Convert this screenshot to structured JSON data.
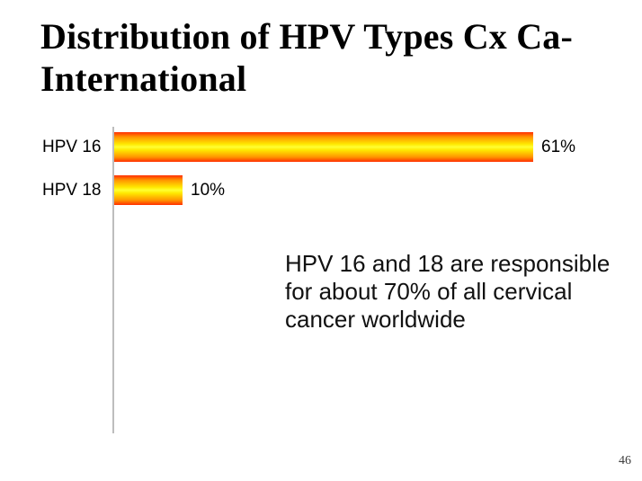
{
  "slide": {
    "title_line1": "Distribution of HPV Types Cx Ca-",
    "title_line2": "International",
    "page_number": "46"
  },
  "chart_data": {
    "type": "bar",
    "orientation": "horizontal",
    "title": "Distribution of HPV Types Cx Ca-International",
    "categories": [
      "HPV 16",
      "HPV 18"
    ],
    "values": [
      61,
      10
    ],
    "value_labels": [
      "61%",
      "10%"
    ],
    "unit": "%",
    "xlabel": "",
    "ylabel": "",
    "grid": false,
    "legend": false,
    "bar_color_edge": "#ff2e00",
    "bar_color_center": "#ffff33",
    "axis_color": "#bdbdbd"
  },
  "annotation": {
    "text": "HPV 16 and 18 are responsible for about 70% of all cervical cancer worldwide",
    "lines": [
      "HPV 16 and 18 are responsible",
      "for about 70% of all cervical",
      "cancer worldwide"
    ]
  }
}
